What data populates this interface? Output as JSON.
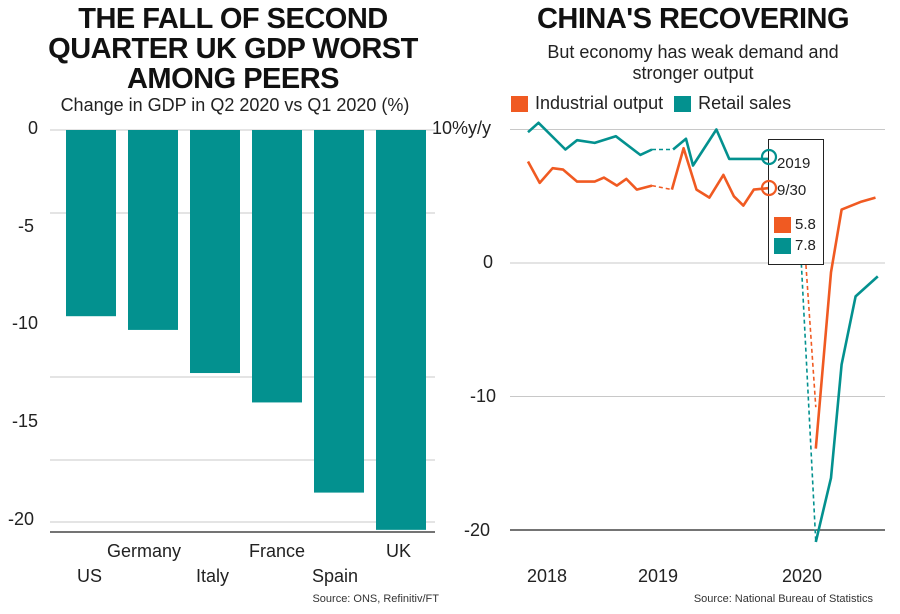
{
  "colors": {
    "teal": "#03918f",
    "orange": "#f05a22",
    "grid": "#c8c8c8",
    "axis": "#222222"
  },
  "chart_data": [
    {
      "type": "bar",
      "title": "THE FALL OF SECOND QUARTER UK GDP WORST AMONG PEERS",
      "title_lines": [
        "THE FALL OF SECOND",
        "QUARTER UK GDP WORST",
        "AMONG PEERS"
      ],
      "subtitle": "Change in GDP in Q2 2020 vs Q1 2020 (%)",
      "categories": [
        "US",
        "Germany",
        "Italy",
        "France",
        "Spain",
        "UK"
      ],
      "values": [
        -9.5,
        -10.2,
        -12.4,
        -13.9,
        -18.5,
        -20.4
      ],
      "yticks": [
        "0",
        "-5",
        "-10",
        "-15",
        "-20"
      ],
      "ylim": [
        -20.5,
        0
      ],
      "grid": true,
      "source": "Source: ONS, Refinitiv/FT"
    },
    {
      "type": "line",
      "title": "CHINA'S RECOVERING",
      "subtitle_lines": [
        "But economy has weak demand and",
        "stronger output"
      ],
      "ylabel": "10%y/y",
      "yticks": [
        "0",
        "-10",
        "-20"
      ],
      "ylim": [
        -21,
        10
      ],
      "xticks": [
        "2018",
        "2019",
        "2020"
      ],
      "x_unit": "months since Jan 2018",
      "legend": [
        "Industrial output",
        "Retail sales"
      ],
      "series": [
        {
          "name": "Industrial output",
          "color": "orange",
          "segments": [
            {
              "dashed": false,
              "points": [
                [
                  0,
                  7.6
                ],
                [
                  1,
                  6.0
                ],
                [
                  2.1,
                  7.1
                ],
                [
                  3,
                  7.0
                ],
                [
                  4.2,
                  6.1
                ],
                [
                  5.7,
                  6.1
                ],
                [
                  6.5,
                  6.4
                ],
                [
                  7.6,
                  5.8
                ],
                [
                  8.4,
                  6.3
                ],
                [
                  9.3,
                  5.5
                ],
                [
                  10.6,
                  5.8
                ]
              ]
            },
            {
              "dashed": true,
              "points": [
                [
                  10.6,
                  5.8
                ],
                [
                  12.3,
                  5.5
                ]
              ]
            },
            {
              "dashed": false,
              "points": [
                [
                  12.3,
                  5.5
                ],
                [
                  13.3,
                  8.6
                ],
                [
                  14.4,
                  5.5
                ],
                [
                  15.5,
                  4.9
                ],
                [
                  16.7,
                  6.6
                ],
                [
                  17.6,
                  5.0
                ],
                [
                  18.4,
                  4.3
                ],
                [
                  19.3,
                  5.5
                ],
                [
                  20.5,
                  5.6
                ],
                [
                  23.3,
                  5.6
                ]
              ]
            },
            {
              "dashed": true,
              "points": [
                [
                  23.3,
                  5.6
                ],
                [
                  24.6,
                  -10.8
                ]
              ]
            },
            {
              "dashed": false,
              "points": [
                [
                  24.6,
                  -13.9
                ],
                [
                  25.9,
                  -0.7
                ],
                [
                  26.8,
                  4.0
                ],
                [
                  28.5,
                  4.6
                ],
                [
                  29.7,
                  4.9
                ]
              ]
            }
          ]
        },
        {
          "name": "Retail sales",
          "color": "teal",
          "segments": [
            {
              "dashed": false,
              "points": [
                [
                  0,
                  9.8
                ],
                [
                  0.9,
                  10.5
                ],
                [
                  3.2,
                  8.5
                ],
                [
                  4.2,
                  9.2
                ],
                [
                  5.7,
                  9.0
                ],
                [
                  7.5,
                  9.5
                ],
                [
                  9.6,
                  8.1
                ],
                [
                  10.6,
                  8.5
                ]
              ]
            },
            {
              "dashed": true,
              "points": [
                [
                  10.6,
                  8.5
                ],
                [
                  12.4,
                  8.5
                ]
              ]
            },
            {
              "dashed": false,
              "points": [
                [
                  12.4,
                  8.5
                ],
                [
                  13.5,
                  9.3
                ],
                [
                  14.1,
                  7.3
                ],
                [
                  16.1,
                  10.0
                ],
                [
                  17.2,
                  7.8
                ],
                [
                  18.4,
                  7.8
                ],
                [
                  20.6,
                  7.8
                ],
                [
                  22.9,
                  7.8
                ]
              ]
            },
            {
              "dashed": true,
              "points": [
                [
                  22.9,
                  7.8
                ],
                [
                  24.6,
                  -20.9
                ]
              ]
            },
            {
              "dashed": false,
              "points": [
                [
                  24.6,
                  -20.9
                ],
                [
                  25.9,
                  -16.1
                ],
                [
                  26.8,
                  -7.6
                ],
                [
                  28.0,
                  -2.5
                ],
                [
                  29.9,
                  -1.0
                ]
              ]
            }
          ]
        }
      ],
      "annotation": {
        "line1": "2019",
        "line2": "9/30",
        "industrial_value": "5.8",
        "retail_value": "7.8"
      },
      "source": "Source: National Bureau of Statistics"
    }
  ]
}
